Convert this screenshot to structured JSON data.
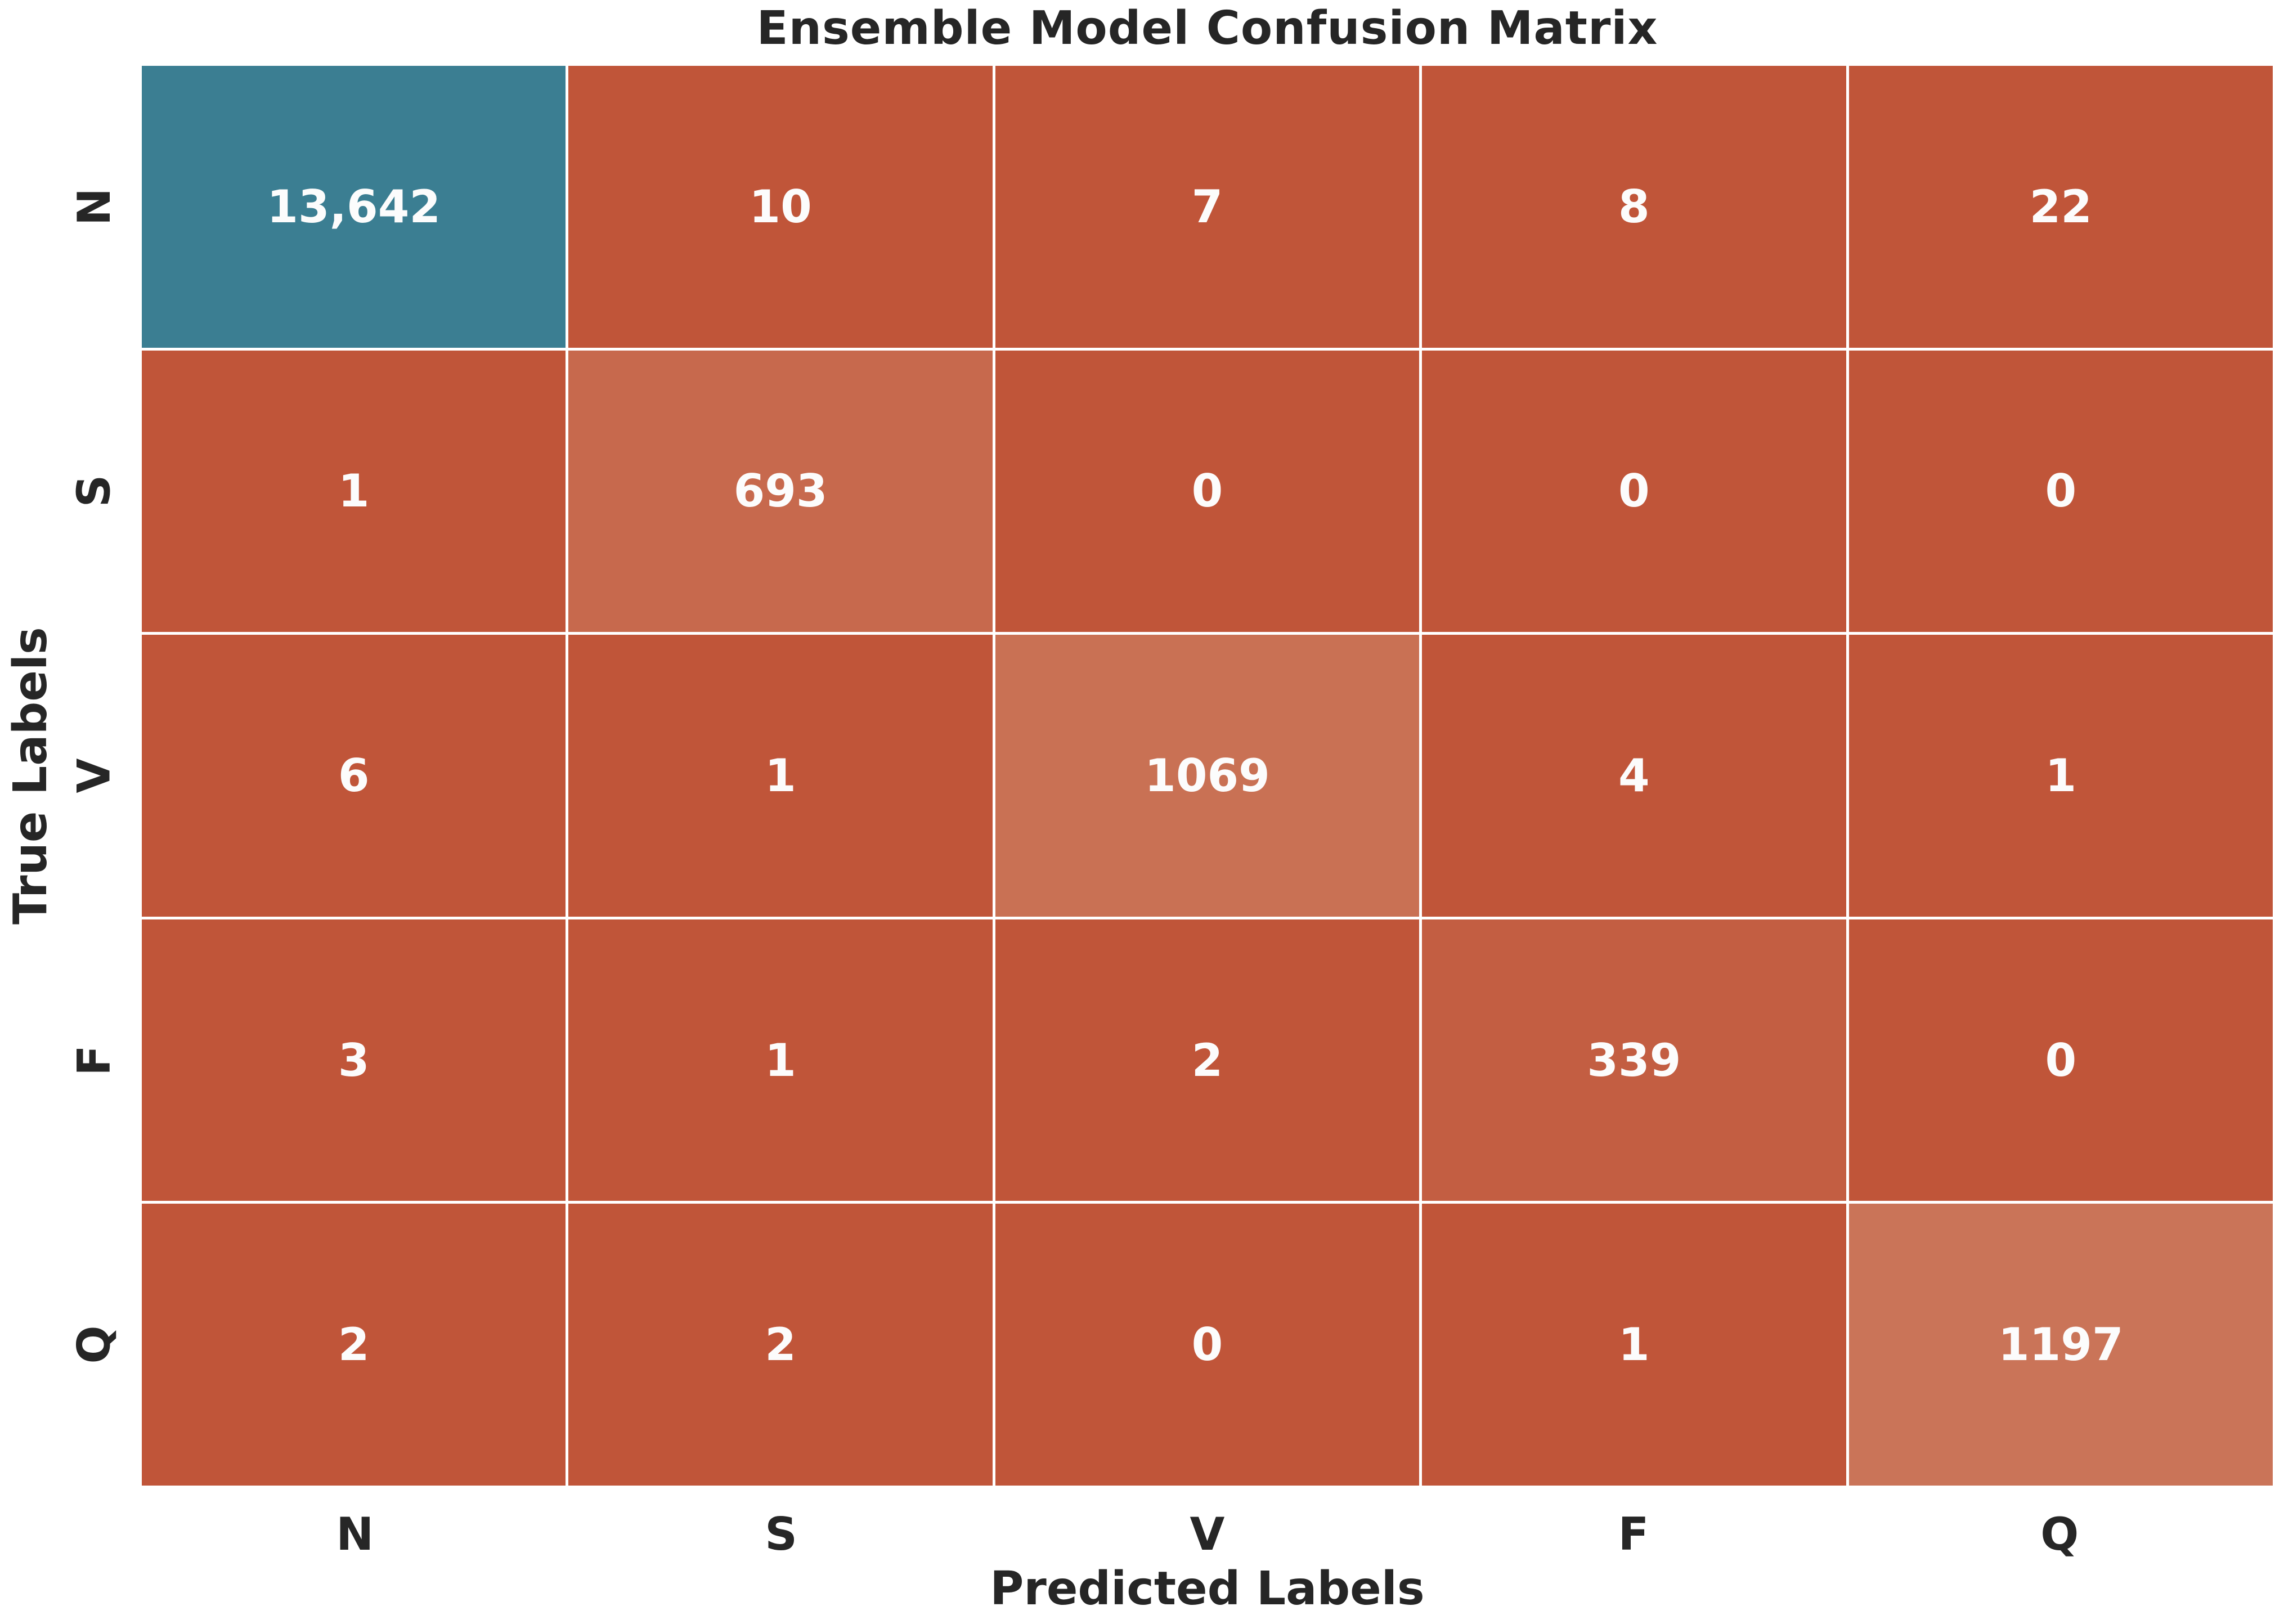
{
  "colors": {
    "background": "#ffffff",
    "grid_gap": "#ffffff",
    "axis_text": "#262626",
    "cell_text": "#fcfcfc",
    "base_red": "#c05539",
    "max_teal": "#3b7e92"
  },
  "chart_data": {
    "type": "heatmap",
    "title": "Ensemble Model Confusion Matrix",
    "xlabel": "Predicted Labels",
    "ylabel": "True Labels",
    "x_categories": [
      "N",
      "S",
      "V",
      "F",
      "Q"
    ],
    "y_categories": [
      "N",
      "S",
      "V",
      "F",
      "Q"
    ],
    "values": [
      [
        13642,
        10,
        7,
        8,
        22
      ],
      [
        1,
        693,
        0,
        0,
        0
      ],
      [
        6,
        1,
        1069,
        4,
        1
      ],
      [
        3,
        1,
        2,
        339,
        0
      ],
      [
        2,
        2,
        0,
        1,
        1197
      ]
    ],
    "display": [
      [
        "13,642",
        "10",
        "7",
        "8",
        "22"
      ],
      [
        "1",
        "693",
        "0",
        "0",
        "0"
      ],
      [
        "6",
        "1",
        "1069",
        "4",
        "1"
      ],
      [
        "3",
        "1",
        "2",
        "339",
        "0"
      ],
      [
        "2",
        "2",
        "0",
        "1",
        "1197"
      ]
    ],
    "cell_colors": [
      [
        "#3b7e92",
        "#c05539",
        "#c05539",
        "#c05539",
        "#c05539"
      ],
      [
        "#c05539",
        "#c7694d",
        "#c05539",
        "#c05539",
        "#c05539"
      ],
      [
        "#c05539",
        "#c05539",
        "#c97154",
        "#c05539",
        "#c05539"
      ],
      [
        "#c05539",
        "#c05539",
        "#c05539",
        "#c35e42",
        "#c05539"
      ],
      [
        "#c05539",
        "#c05539",
        "#c05539",
        "#c05539",
        "#ca7458"
      ]
    ],
    "legend": "none",
    "grid": "white-gaps"
  }
}
